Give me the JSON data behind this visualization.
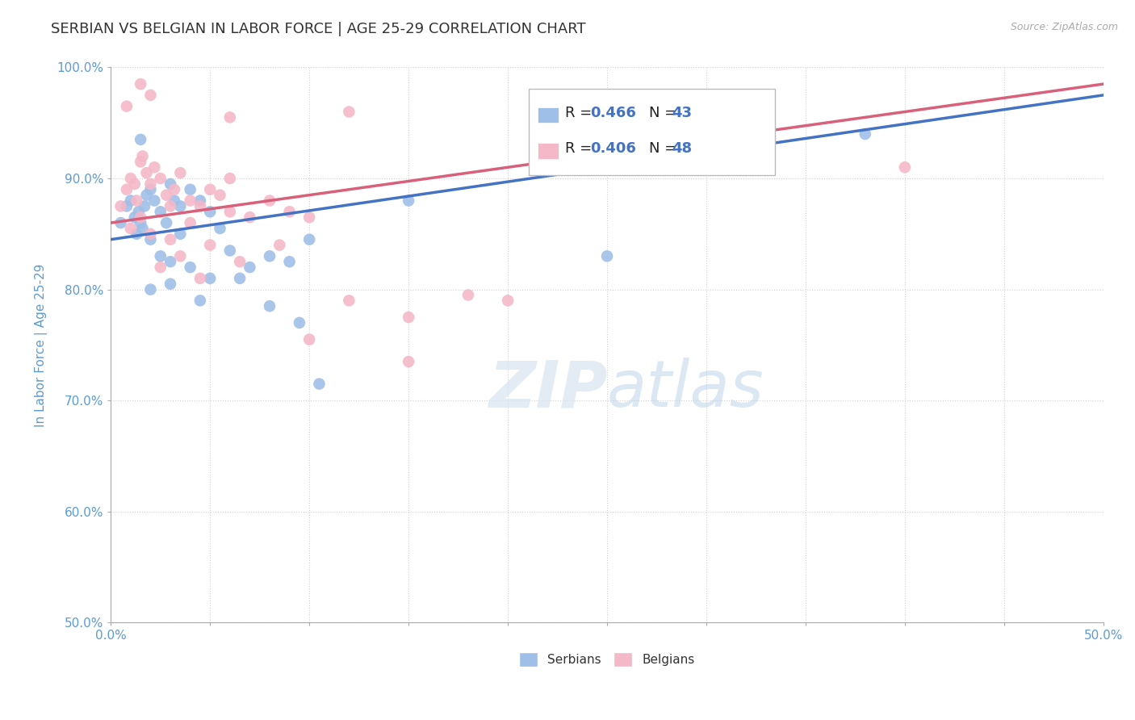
{
  "title": "SERBIAN VS BELGIAN IN LABOR FORCE | AGE 25-29 CORRELATION CHART",
  "source": "Source: ZipAtlas.com",
  "ylabel": "In Labor Force | Age 25-29",
  "xlim": [
    0.0,
    50.0
  ],
  "ylim": [
    50.0,
    100.0
  ],
  "yticks": [
    50.0,
    60.0,
    70.0,
    80.0,
    90.0,
    100.0
  ],
  "xticks": [
    0.0,
    5.0,
    10.0,
    15.0,
    20.0,
    25.0,
    30.0,
    35.0,
    40.0,
    45.0,
    50.0
  ],
  "serbian_color": "#a0bfe8",
  "belgian_color": "#f4b8c8",
  "serbian_line_color": "#4472c4",
  "belgian_line_color": "#d9607a",
  "watermark_zip": "ZIP",
  "watermark_atlas": "atlas",
  "legend_R_serbian": "0.466",
  "legend_N_serbian": "43",
  "legend_R_belgian": "0.406",
  "legend_N_belgian": "48",
  "serbian_scatter": [
    [
      0.5,
      86.0
    ],
    [
      0.8,
      87.5
    ],
    [
      1.0,
      88.0
    ],
    [
      1.2,
      86.5
    ],
    [
      1.3,
      85.0
    ],
    [
      1.4,
      87.0
    ],
    [
      1.5,
      86.0
    ],
    [
      1.6,
      85.5
    ],
    [
      1.7,
      87.5
    ],
    [
      1.8,
      88.5
    ],
    [
      2.0,
      89.0
    ],
    [
      2.2,
      88.0
    ],
    [
      2.5,
      87.0
    ],
    [
      2.8,
      86.0
    ],
    [
      3.0,
      89.5
    ],
    [
      3.2,
      88.0
    ],
    [
      3.5,
      87.5
    ],
    [
      4.0,
      89.0
    ],
    [
      4.5,
      88.0
    ],
    [
      5.0,
      87.0
    ],
    [
      2.0,
      84.5
    ],
    [
      2.5,
      83.0
    ],
    [
      3.0,
      82.5
    ],
    [
      4.0,
      82.0
    ],
    [
      5.0,
      81.0
    ],
    [
      6.0,
      83.5
    ],
    [
      7.0,
      82.0
    ],
    [
      8.0,
      83.0
    ],
    [
      9.0,
      82.5
    ],
    [
      10.0,
      84.5
    ],
    [
      3.5,
      85.0
    ],
    [
      2.0,
      80.0
    ],
    [
      3.0,
      80.5
    ],
    [
      4.5,
      79.0
    ],
    [
      6.5,
      81.0
    ],
    [
      8.0,
      78.5
    ],
    [
      9.5,
      77.0
    ],
    [
      1.5,
      93.5
    ],
    [
      5.5,
      85.5
    ],
    [
      10.5,
      71.5
    ],
    [
      15.0,
      88.0
    ],
    [
      25.0,
      83.0
    ],
    [
      38.0,
      94.0
    ]
  ],
  "belgian_scatter": [
    [
      0.5,
      87.5
    ],
    [
      0.8,
      89.0
    ],
    [
      1.0,
      90.0
    ],
    [
      1.2,
      89.5
    ],
    [
      1.3,
      88.0
    ],
    [
      1.5,
      91.5
    ],
    [
      1.6,
      92.0
    ],
    [
      1.8,
      90.5
    ],
    [
      2.0,
      89.5
    ],
    [
      2.2,
      91.0
    ],
    [
      2.5,
      90.0
    ],
    [
      2.8,
      88.5
    ],
    [
      3.0,
      87.5
    ],
    [
      3.2,
      89.0
    ],
    [
      3.5,
      90.5
    ],
    [
      4.0,
      88.0
    ],
    [
      4.5,
      87.5
    ],
    [
      5.0,
      89.0
    ],
    [
      5.5,
      88.5
    ],
    [
      6.0,
      90.0
    ],
    [
      1.0,
      85.5
    ],
    [
      1.5,
      86.5
    ],
    [
      2.0,
      85.0
    ],
    [
      3.0,
      84.5
    ],
    [
      4.0,
      86.0
    ],
    [
      5.0,
      84.0
    ],
    [
      6.0,
      87.0
    ],
    [
      7.0,
      86.5
    ],
    [
      8.0,
      88.0
    ],
    [
      9.0,
      87.0
    ],
    [
      2.5,
      82.0
    ],
    [
      3.5,
      83.0
    ],
    [
      4.5,
      81.0
    ],
    [
      6.5,
      82.5
    ],
    [
      8.5,
      84.0
    ],
    [
      10.0,
      86.5
    ],
    [
      12.0,
      79.0
    ],
    [
      15.0,
      77.5
    ],
    [
      18.0,
      79.5
    ],
    [
      20.0,
      79.0
    ],
    [
      12.0,
      96.0
    ],
    [
      0.8,
      96.5
    ],
    [
      1.5,
      98.5
    ],
    [
      2.0,
      97.5
    ],
    [
      6.0,
      95.5
    ],
    [
      10.0,
      75.5
    ],
    [
      15.0,
      73.5
    ],
    [
      40.0,
      91.0
    ]
  ],
  "serbian_trendline_x": [
    0.0,
    50.0
  ],
  "serbian_trendline_y": [
    84.5,
    97.5
  ],
  "belgian_trendline_x": [
    0.0,
    50.0
  ],
  "belgian_trendline_y": [
    86.0,
    98.5
  ],
  "background_color": "#ffffff",
  "grid_color": "#d0d0d0",
  "title_color": "#333333",
  "axis_label_color": "#5b9bd5",
  "tick_label_color": "#5b9bd5"
}
